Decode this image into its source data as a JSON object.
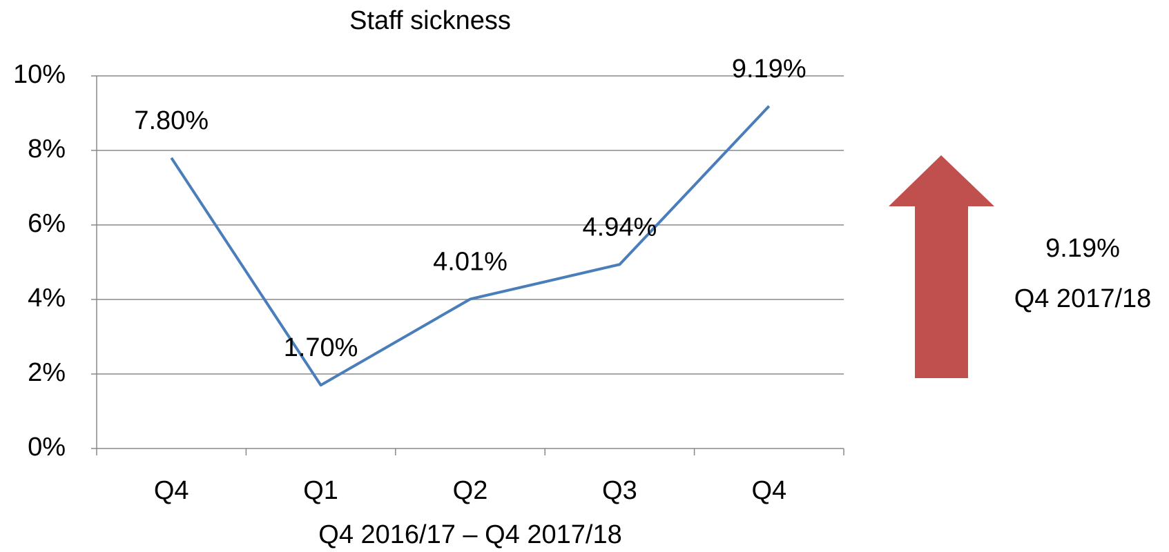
{
  "chart_data": {
    "type": "line",
    "title": "Staff sickness",
    "x_label": "Q4 2016/17 – Q4 2017/18",
    "categories": [
      "Q4",
      "Q1",
      "Q2",
      "Q3",
      "Q4"
    ],
    "series": [
      {
        "name": "Staff sickness",
        "color": "#4a7ebb",
        "values": [
          7.8,
          1.7,
          4.01,
          4.94,
          9.19
        ],
        "value_labels": [
          "7.80%",
          "1.70%",
          "4.01%",
          "4.94%",
          "9.19%"
        ]
      }
    ],
    "ylim": [
      0,
      10
    ],
    "yticks": [
      {
        "value": 0,
        "label": "0%"
      },
      {
        "value": 2,
        "label": "2%"
      },
      {
        "value": 4,
        "label": "4%"
      },
      {
        "value": 6,
        "label": "6%"
      },
      {
        "value": 8,
        "label": "8%"
      },
      {
        "value": 10,
        "label": "10%"
      }
    ],
    "grid": true,
    "annotations": [
      "9.19%",
      "Q4 2017/18"
    ]
  }
}
